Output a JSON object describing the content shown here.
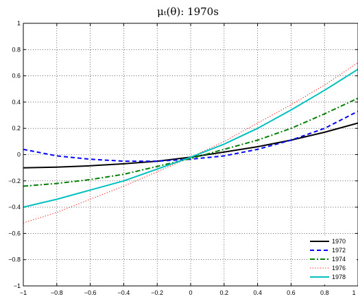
{
  "chart_data": {
    "type": "line",
    "title": "μₜ(θ): 1970s",
    "xlabel": "",
    "ylabel": "",
    "xlim": [
      -1,
      1
    ],
    "ylim": [
      -1,
      1
    ],
    "x_ticks": [
      "−1",
      "−0.8",
      "−0.6",
      "−0.4",
      "−0.2",
      "0",
      "0.2",
      "0.4",
      "0.6",
      "0.8",
      "1"
    ],
    "y_ticks": [
      "−1",
      "−0.8",
      "−0.6",
      "−0.4",
      "−0.2",
      "0",
      "0.2",
      "0.4",
      "0.6",
      "0.8",
      "1"
    ],
    "grid": true,
    "legend_position": "bottom-right",
    "x": [
      -1,
      -0.8,
      -0.6,
      -0.4,
      -0.2,
      0,
      0.2,
      0.4,
      0.6,
      0.8,
      1
    ],
    "series": [
      {
        "name": "1970",
        "color": "#000000",
        "dash": "solid",
        "values": [
          -0.1,
          -0.095,
          -0.085,
          -0.07,
          -0.05,
          -0.02,
          0.02,
          0.06,
          0.11,
          0.17,
          0.24
        ]
      },
      {
        "name": "1972",
        "color": "#0000ff",
        "dash": "dashed",
        "values": [
          0.04,
          -0.01,
          -0.035,
          -0.05,
          -0.05,
          -0.035,
          -0.01,
          0.04,
          0.11,
          0.2,
          0.33
        ]
      },
      {
        "name": "1974",
        "color": "#007f00",
        "dash": "dashdot",
        "values": [
          -0.24,
          -0.22,
          -0.19,
          -0.15,
          -0.09,
          -0.03,
          0.04,
          0.11,
          0.2,
          0.31,
          0.43
        ]
      },
      {
        "name": "1976",
        "color": "#ff0000",
        "dash": "dotted",
        "values": [
          -0.52,
          -0.44,
          -0.34,
          -0.24,
          -0.13,
          -0.02,
          0.1,
          0.24,
          0.38,
          0.53,
          0.7
        ]
      },
      {
        "name": "1978",
        "color": "#00bfbf",
        "dash": "solid",
        "values": [
          -0.4,
          -0.34,
          -0.27,
          -0.2,
          -0.11,
          -0.02,
          0.08,
          0.2,
          0.34,
          0.49,
          0.65
        ]
      }
    ]
  }
}
